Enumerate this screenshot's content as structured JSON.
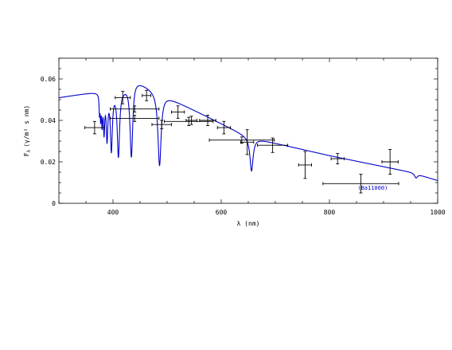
{
  "chart_data": {
    "type": "scatter",
    "title": "",
    "xlabel": "λ (nm)",
    "ylabel": "F",
    "ylabel_sub": "λ",
    "ylabel_units": "(γ/m² s nm)",
    "xlim": [
      300,
      1000
    ],
    "ylim": [
      0,
      0.07
    ],
    "x_ticks": [
      400,
      600,
      800,
      1000
    ],
    "y_ticks": [
      0,
      0.02,
      0.04,
      0.06
    ],
    "x_tick_labels": [
      "400",
      "600",
      "800",
      "1000"
    ],
    "y_tick_labels": [
      "0",
      "0.02",
      "0.04",
      "0.06"
    ],
    "grid": false,
    "series": [
      {
        "kind": "errorbar",
        "color": "#000000",
        "points": [
          {
            "x": 366,
            "y": 0.0365,
            "xerr": 18,
            "yerr": 0.003
          },
          {
            "x": 418,
            "y": 0.051,
            "xerr": 14,
            "yerr": 0.003
          },
          {
            "x": 440,
            "y": 0.0455,
            "xerr": 45,
            "yerr": 0.0015
          },
          {
            "x": 440,
            "y": 0.041,
            "xerr": 45,
            "yerr": 0.0015
          },
          {
            "x": 462,
            "y": 0.052,
            "xerr": 8,
            "yerr": 0.0025
          },
          {
            "x": 490,
            "y": 0.038,
            "xerr": 18,
            "yerr": 0.002
          },
          {
            "x": 520,
            "y": 0.044,
            "xerr": 12,
            "yerr": 0.003
          },
          {
            "x": 540,
            "y": 0.0395,
            "xerr": 45,
            "yerr": 0.002
          },
          {
            "x": 545,
            "y": 0.04,
            "xerr": 10,
            "yerr": 0.002
          },
          {
            "x": 575,
            "y": 0.04,
            "xerr": 15,
            "yerr": 0.0025
          },
          {
            "x": 605,
            "y": 0.0365,
            "xerr": 12,
            "yerr": 0.003
          },
          {
            "x": 638,
            "y": 0.0305,
            "xerr": 60,
            "yerr": 0.0015
          },
          {
            "x": 648,
            "y": 0.0295,
            "xerr": 12,
            "yerr": 0.006
          },
          {
            "x": 695,
            "y": 0.028,
            "xerr": 28,
            "yerr": 0.0035
          },
          {
            "x": 755,
            "y": 0.0185,
            "xerr": 12,
            "yerr": 0.0065
          },
          {
            "x": 815,
            "y": 0.0215,
            "xerr": 12,
            "yerr": 0.0025
          },
          {
            "x": 858,
            "y": 0.0095,
            "xerr": 70,
            "yerr": 0.0045
          },
          {
            "x": 912,
            "y": 0.02,
            "xerr": 15,
            "yerr": 0.006
          }
        ]
      },
      {
        "kind": "model_line",
        "color": "#0000cc"
      }
    ],
    "annotations": [
      {
        "text": "(Ba11000)",
        "x": 852,
        "y": 0.0065
      }
    ]
  }
}
